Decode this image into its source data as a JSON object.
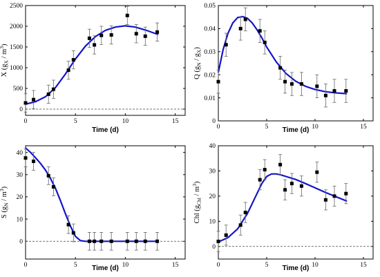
{
  "chart_data": [
    {
      "type": "scatter",
      "panel": "top-left",
      "ylabel_main": "X (g",
      "ylabel_sub1": "X",
      "ylabel_mid": " / m",
      "ylabel_sup": "3",
      "ylabel_end": ")",
      "xlabel": "Time (d)",
      "xlim": [
        0,
        16
      ],
      "ylim": [
        -150,
        2500
      ],
      "xticks": [
        0,
        5,
        10,
        15
      ],
      "yticks": [
        0,
        500,
        1000,
        1500,
        2000,
        2500
      ],
      "ref_y": 0,
      "points": {
        "x": [
          0,
          0.8,
          2.3,
          2.8,
          4.3,
          4.8,
          6.4,
          6.9,
          7.6,
          8.6,
          10.2,
          11.1,
          12,
          13.2
        ],
        "y": [
          150,
          230,
          360,
          480,
          940,
          1190,
          1710,
          1550,
          1780,
          1790,
          2260,
          1820,
          1760,
          1860
        ],
        "err": [
          220,
          220,
          220,
          220,
          220,
          220,
          220,
          220,
          220,
          220,
          220,
          220,
          220,
          220
        ]
      },
      "model": {
        "x": [
          0,
          1,
          2,
          3,
          4,
          5,
          6,
          7,
          8,
          9,
          10,
          11,
          12,
          13.3
        ],
        "y": [
          120,
          180,
          300,
          520,
          850,
          1210,
          1520,
          1750,
          1900,
          1980,
          2010,
          1980,
          1910,
          1800
        ]
      }
    },
    {
      "type": "scatter",
      "panel": "top-right",
      "ylabel_main": "Q (g",
      "ylabel_sub1": "N",
      "ylabel_mid": " / g",
      "ylabel_sub2": "X",
      "ylabel_end": ")",
      "xlabel": "Time (d)",
      "xlim": [
        0,
        16
      ],
      "ylim": [
        0,
        0.05
      ],
      "xticks": [
        0,
        5,
        10,
        15
      ],
      "yticks": [
        0,
        0.01,
        0.02,
        0.03,
        0.04,
        0.05
      ],
      "ytick_labels": [
        "0",
        "0.01",
        "0.02",
        "0.03",
        "0.04",
        "0.05"
      ],
      "points": {
        "x": [
          0,
          0.8,
          2.3,
          2.8,
          4.3,
          4.8,
          6.4,
          6.9,
          7.6,
          8.6,
          10.2,
          11.1,
          12,
          13.2
        ],
        "y": [
          0.017,
          0.033,
          0.04,
          0.044,
          0.039,
          0.034,
          0.023,
          0.017,
          0.016,
          0.016,
          0.015,
          0.011,
          0.013,
          0.013
        ],
        "err": [
          0.005,
          0.005,
          0.005,
          0.005,
          0.005,
          0.005,
          0.005,
          0.005,
          0.005,
          0.005,
          0.005,
          0.005,
          0.005,
          0.005
        ]
      },
      "model": {
        "x": [
          0,
          0.5,
          1,
          1.5,
          2,
          2.5,
          3,
          3.5,
          4,
          4.5,
          5,
          6,
          7,
          8,
          9,
          10,
          11,
          12,
          13.3
        ],
        "y": [
          0.021,
          0.031,
          0.038,
          0.0425,
          0.0448,
          0.0452,
          0.0445,
          0.0425,
          0.0395,
          0.036,
          0.032,
          0.0255,
          0.0205,
          0.0172,
          0.015,
          0.0136,
          0.0127,
          0.0122,
          0.0118
        ]
      }
    },
    {
      "type": "scatter",
      "panel": "bottom-left",
      "ylabel_main": "S (g",
      "ylabel_sub1": "N",
      "ylabel_mid": " / m",
      "ylabel_sup": "3",
      "ylabel_end": ")",
      "xlabel": "Time (d)",
      "xlim": [
        0,
        16
      ],
      "ylim": [
        -8,
        43
      ],
      "xticks": [
        0,
        5,
        10,
        15
      ],
      "yticks": [
        0,
        10,
        20,
        30,
        40
      ],
      "ref_y": 0,
      "points": {
        "x": [
          0,
          0.8,
          2.3,
          2.8,
          4.3,
          4.8,
          6.4,
          6.9,
          7.6,
          8.6,
          10.2,
          11.1,
          12,
          13.2
        ],
        "y": [
          37.5,
          36,
          29.5,
          24.5,
          7.5,
          3.8,
          0,
          0,
          0,
          0,
          0,
          0,
          0,
          0
        ],
        "err": [
          4,
          4,
          4,
          4,
          4,
          4,
          4,
          4,
          4,
          4,
          4,
          4,
          4,
          4
        ]
      },
      "model": {
        "x": [
          0,
          0.5,
          1,
          1.5,
          2,
          2.5,
          3,
          3.5,
          4,
          4.5,
          5,
          5.5,
          6,
          7,
          8,
          9,
          10,
          11,
          12,
          13.3
        ],
        "y": [
          42,
          40,
          37.6,
          35,
          32,
          28.3,
          23.8,
          18.3,
          12.3,
          6.8,
          2.2,
          0.3,
          0,
          0,
          0,
          0,
          0,
          0,
          0,
          0
        ]
      }
    },
    {
      "type": "scatter",
      "panel": "bottom-right",
      "ylabel_main": "Chl (g",
      "ylabel_sub1": "Chl",
      "ylabel_mid": " / m",
      "ylabel_sup": "3",
      "ylabel_end": ")",
      "xlabel": "Time (d)",
      "xlim": [
        0,
        16
      ],
      "ylim": [
        -5,
        40
      ],
      "xticks": [
        0,
        5,
        10,
        15
      ],
      "yticks": [
        0,
        10,
        20,
        30,
        40
      ],
      "ref_y": 0,
      "points": {
        "x": [
          0,
          0.8,
          2.3,
          2.8,
          4.3,
          4.8,
          6.4,
          6.9,
          7.6,
          8.6,
          10.2,
          11.1,
          12,
          13.2
        ],
        "y": [
          2,
          4.5,
          8.5,
          13.5,
          26.5,
          30.5,
          32.5,
          22.5,
          25,
          24,
          29.5,
          18.5,
          20,
          21
        ],
        "err": [
          4,
          4,
          4,
          4,
          4,
          4,
          4,
          4,
          4,
          4,
          4,
          4,
          4,
          4
        ]
      },
      "model": {
        "x": [
          0,
          1,
          2,
          3,
          4,
          4.5,
          5,
          5.5,
          6,
          6.5,
          7,
          8,
          9,
          10,
          11,
          12,
          13.3
        ],
        "y": [
          1.8,
          3.5,
          7,
          13,
          21,
          25,
          27.8,
          28.8,
          28.8,
          28.4,
          27.8,
          26.6,
          25,
          23.3,
          21.6,
          20,
          18
        ]
      }
    }
  ]
}
